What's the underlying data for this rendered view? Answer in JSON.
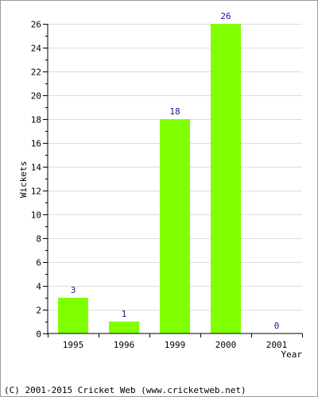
{
  "chart_data": {
    "type": "bar",
    "categories": [
      "1995",
      "1996",
      "1999",
      "2000",
      "2001"
    ],
    "values": [
      3,
      1,
      18,
      26,
      0
    ],
    "data_labels": [
      "3",
      "1",
      "18",
      "26",
      "0"
    ],
    "title": "",
    "xlabel": "Year",
    "ylabel": "Wickets",
    "ylim": [
      0,
      26
    ],
    "y_ticks": [
      "0",
      "2",
      "4",
      "6",
      "8",
      "10",
      "12",
      "14",
      "16",
      "18",
      "20",
      "22",
      "24",
      "26"
    ],
    "y_minor_step": 1,
    "grid": true,
    "legend": "none",
    "bar_color": "#80ff00",
    "value_label_color": "#1a1a8c",
    "grid_color": "#dcdcdc"
  },
  "footer": {
    "copyright": "(C) 2001-2015 Cricket Web (www.cricketweb.net)"
  }
}
